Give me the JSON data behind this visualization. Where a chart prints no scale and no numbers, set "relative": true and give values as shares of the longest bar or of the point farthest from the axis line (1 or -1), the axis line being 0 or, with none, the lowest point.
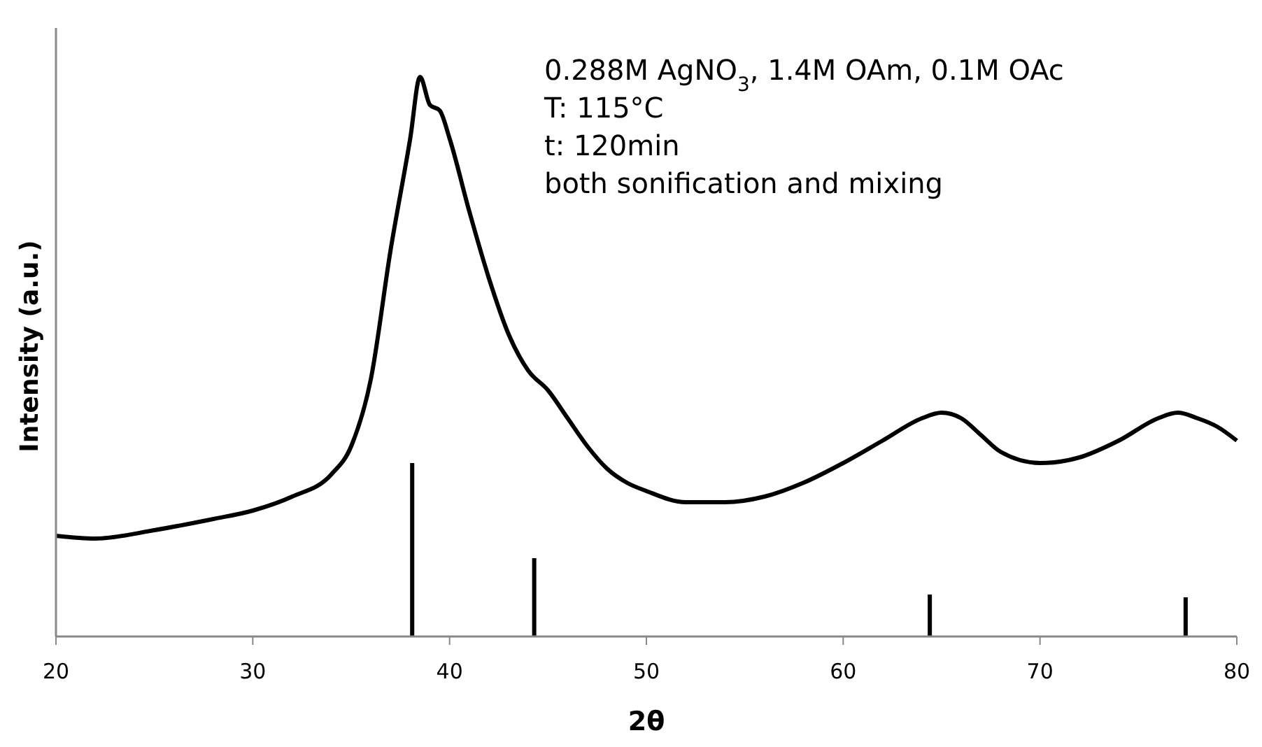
{
  "chart_data": {
    "type": "line",
    "relative": true,
    "xlabel": "2θ",
    "ylabel": "Intensity (a.u.)",
    "xlim": [
      20,
      80
    ],
    "xticks": [
      20,
      30,
      40,
      50,
      60,
      70,
      80
    ],
    "tick_labels": "x",
    "grid": false,
    "annotations": [
      "0.288M AgNO$_{3}$, 1.4M OAm, 0.1M OAc",
      "T: 115°C",
      "t: 120min",
      "both sonification and mixing"
    ],
    "series": [
      {
        "color": "#000000",
        "x": [
          20,
          22,
          25,
          28,
          30,
          32,
          34,
          35,
          36,
          37,
          38,
          38.5,
          39,
          39.5,
          40,
          41,
          42,
          43,
          44,
          45,
          46,
          47,
          48,
          49,
          50,
          52,
          54,
          56,
          58,
          60,
          62,
          64,
          65,
          66,
          67,
          68,
          70,
          72,
          74,
          76,
          77,
          78,
          79,
          80
        ],
        "values": [
          0.18,
          0.175,
          0.19,
          0.21,
          0.225,
          0.25,
          0.29,
          0.34,
          0.46,
          0.69,
          0.89,
          1,
          0.95,
          0.94,
          0.89,
          0.76,
          0.64,
          0.54,
          0.475,
          0.44,
          0.39,
          0.34,
          0.3,
          0.275,
          0.26,
          0.24,
          0.24,
          0.25,
          0.275,
          0.31,
          0.35,
          0.39,
          0.4,
          0.39,
          0.36,
          0.33,
          0.31,
          0.32,
          0.35,
          0.39,
          0.4,
          0.39,
          0.375,
          0.35
        ]
      },
      {
        "type": "bar",
        "color": "#000000",
        "x": [
          38.1,
          44.3,
          64.4,
          77.4
        ],
        "values": [
          0.31,
          0.14,
          0.075,
          0.07
        ]
      }
    ]
  }
}
